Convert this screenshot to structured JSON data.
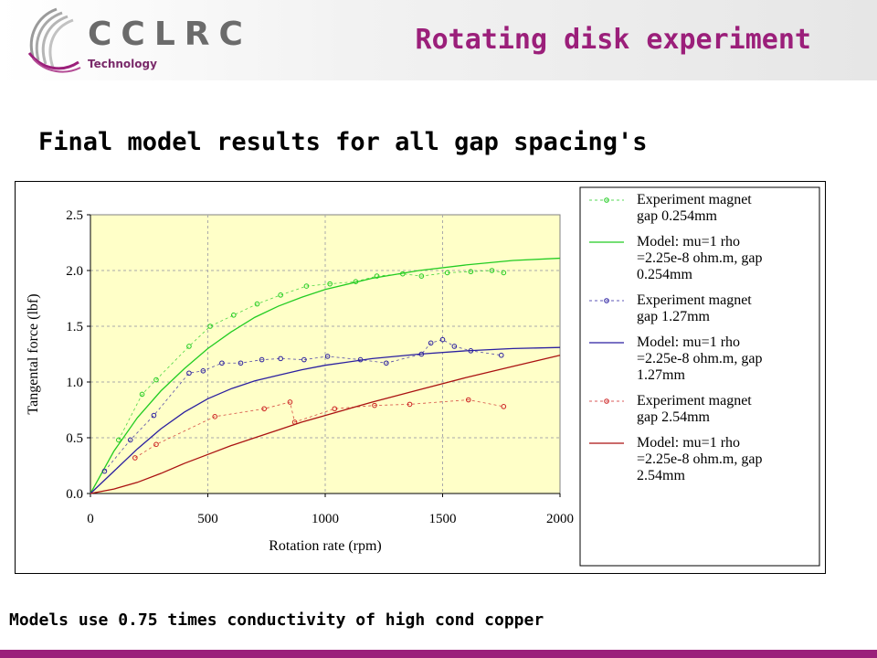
{
  "header": {
    "logo_text": "CCLRC",
    "logo_sub": "Technology",
    "title": "Rotating disk experiment",
    "brand_color": "#9b1f7a"
  },
  "subtitle": "Final model results for all gap spacing's",
  "footer_note": "Models use 0.75 times conductivity of high cond copper",
  "chart_data": {
    "type": "line",
    "title": "",
    "xlabel": "Rotation rate (rpm)",
    "ylabel": "Tangental force (lbf)",
    "xlim": [
      0,
      2000
    ],
    "ylim": [
      0,
      2.5
    ],
    "xticks": [
      0,
      500,
      1000,
      1500,
      2000
    ],
    "xtick_labels": [
      "0",
      "500",
      "1000",
      "1500",
      "2000"
    ],
    "yticks": [
      0,
      0.5,
      1.0,
      1.5,
      2.0,
      2.5
    ],
    "ytick_labels": [
      "0.0",
      "0.5",
      "1.0",
      "1.5",
      "2.0",
      "2.5"
    ],
    "grid": true,
    "plot_background": "#ffffc8",
    "legend_position": "right",
    "series": [
      {
        "name": "Experiment magnet gap 0.254mm",
        "legend_lines": [
          "Experiment magnet",
          "gap 0.254mm"
        ],
        "kind": "experiment",
        "color": "#22cc22",
        "x": [
          120,
          220,
          280,
          420,
          510,
          610,
          710,
          810,
          920,
          1020,
          1130,
          1220,
          1330,
          1410,
          1520,
          1620,
          1710,
          1760
        ],
        "y": [
          0.48,
          0.89,
          1.02,
          1.32,
          1.5,
          1.6,
          1.7,
          1.78,
          1.86,
          1.88,
          1.9,
          1.95,
          1.97,
          1.95,
          1.98,
          1.99,
          2.0,
          1.98
        ]
      },
      {
        "name": "Model: mu=1 rho =2.25e-8 ohm.m, gap 0.254mm",
        "legend_lines": [
          "Model: mu=1 rho",
          "=2.25e-8 ohm.m, gap",
          "0.254mm"
        ],
        "kind": "model",
        "color": "#22cc22",
        "x": [
          0,
          100,
          200,
          300,
          400,
          500,
          600,
          700,
          800,
          900,
          1000,
          1200,
          1400,
          1600,
          1800,
          2000
        ],
        "y": [
          0.0,
          0.38,
          0.68,
          0.92,
          1.12,
          1.3,
          1.45,
          1.58,
          1.68,
          1.76,
          1.83,
          1.93,
          2.0,
          2.05,
          2.09,
          2.11
        ]
      },
      {
        "name": "Experiment magnet gap 1.27mm",
        "legend_lines": [
          "Experiment magnet",
          "gap 1.27mm"
        ],
        "kind": "experiment",
        "color": "#2a1fa0",
        "x": [
          60,
          170,
          270,
          420,
          480,
          560,
          640,
          730,
          810,
          910,
          1010,
          1150,
          1260,
          1410,
          1450,
          1500,
          1550,
          1620,
          1750
        ],
        "y": [
          0.2,
          0.48,
          0.7,
          1.08,
          1.1,
          1.17,
          1.17,
          1.2,
          1.21,
          1.2,
          1.23,
          1.2,
          1.17,
          1.25,
          1.35,
          1.38,
          1.32,
          1.28,
          1.24
        ]
      },
      {
        "name": "Model: mu=1 rho =2.25e-8 ohm.m, gap 1.27mm",
        "legend_lines": [
          "Model: mu=1 rho",
          "=2.25e-8 ohm.m, gap",
          "1.27mm"
        ],
        "kind": "model",
        "color": "#2a1fa0",
        "x": [
          0,
          100,
          200,
          300,
          400,
          500,
          600,
          700,
          800,
          900,
          1000,
          1200,
          1400,
          1600,
          1800,
          2000
        ],
        "y": [
          0.0,
          0.2,
          0.4,
          0.58,
          0.73,
          0.85,
          0.94,
          1.01,
          1.06,
          1.11,
          1.15,
          1.21,
          1.25,
          1.28,
          1.3,
          1.31
        ]
      },
      {
        "name": "Experiment magnet gap 2.54mm",
        "legend_lines": [
          "Experiment magnet",
          "gap 2.54mm"
        ],
        "kind": "experiment",
        "color": "#cc2222",
        "x": [
          190,
          280,
          530,
          740,
          850,
          870,
          1040,
          1210,
          1360,
          1610,
          1760
        ],
        "y": [
          0.32,
          0.44,
          0.69,
          0.76,
          0.82,
          0.64,
          0.76,
          0.79,
          0.8,
          0.84,
          0.78
        ]
      },
      {
        "name": "Model: mu=1 rho =2.25e-8 ohm.m, gap 2.54mm",
        "legend_lines": [
          "Model: mu=1 rho",
          "=2.25e-8 ohm.m, gap",
          "2.54mm"
        ],
        "kind": "model",
        "color": "#aa1111",
        "x": [
          0,
          100,
          200,
          300,
          400,
          500,
          600,
          700,
          800,
          900,
          1000,
          1200,
          1400,
          1600,
          1800,
          2000
        ],
        "y": [
          0.0,
          0.04,
          0.1,
          0.18,
          0.27,
          0.35,
          0.43,
          0.5,
          0.57,
          0.64,
          0.7,
          0.82,
          0.93,
          1.04,
          1.14,
          1.24
        ]
      }
    ]
  }
}
